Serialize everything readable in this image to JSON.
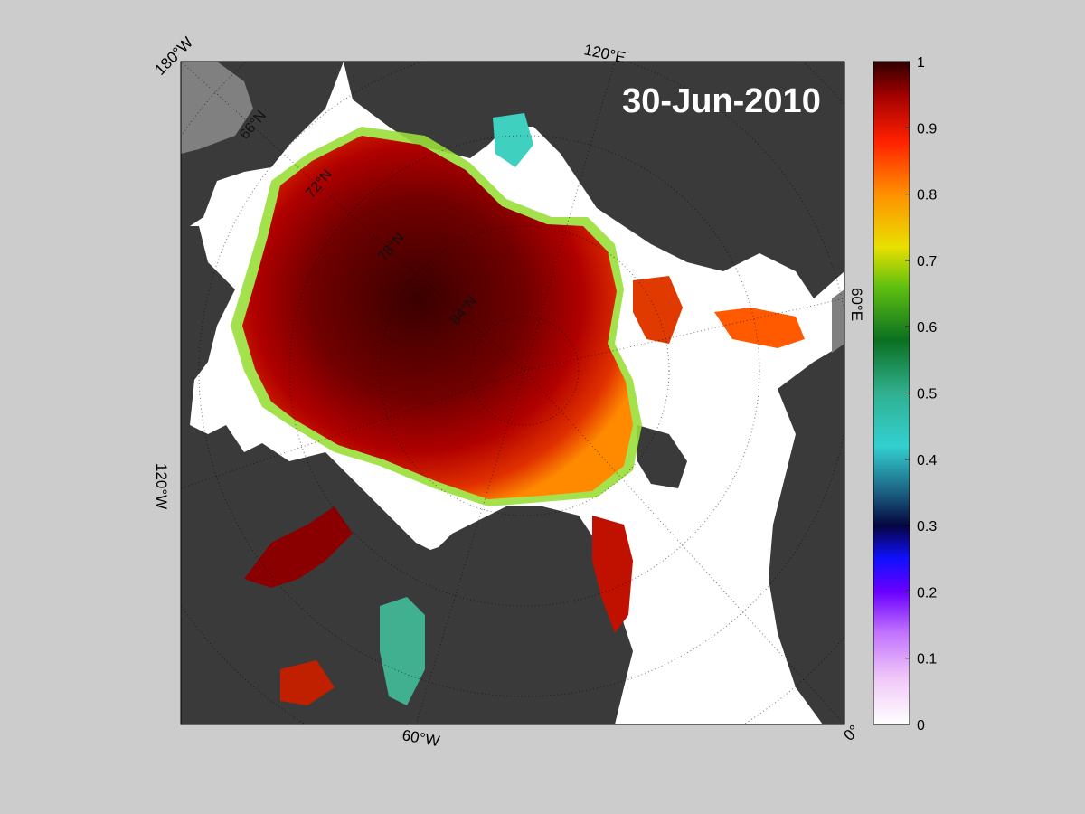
{
  "map": {
    "date_label": "30-Jun-2010",
    "longitude_labels": {
      "top_left": "180°W",
      "top": "120°E",
      "right": "60°E",
      "left": "120°W",
      "bottom": "60°W",
      "bottom_right": "0°"
    },
    "latitude_labels": [
      "66°N",
      "72°N",
      "78°N",
      "84°N"
    ],
    "colors": {
      "background": "#cccccc",
      "land": "#3a3a3a",
      "ocean_open": "#ffffff",
      "masked": "#808080"
    }
  },
  "colorbar": {
    "ticks": [
      "0",
      "0.1",
      "0.2",
      "0.3",
      "0.4",
      "0.5",
      "0.6",
      "0.7",
      "0.8",
      "0.9",
      "1"
    ],
    "range": [
      0,
      1
    ]
  }
}
